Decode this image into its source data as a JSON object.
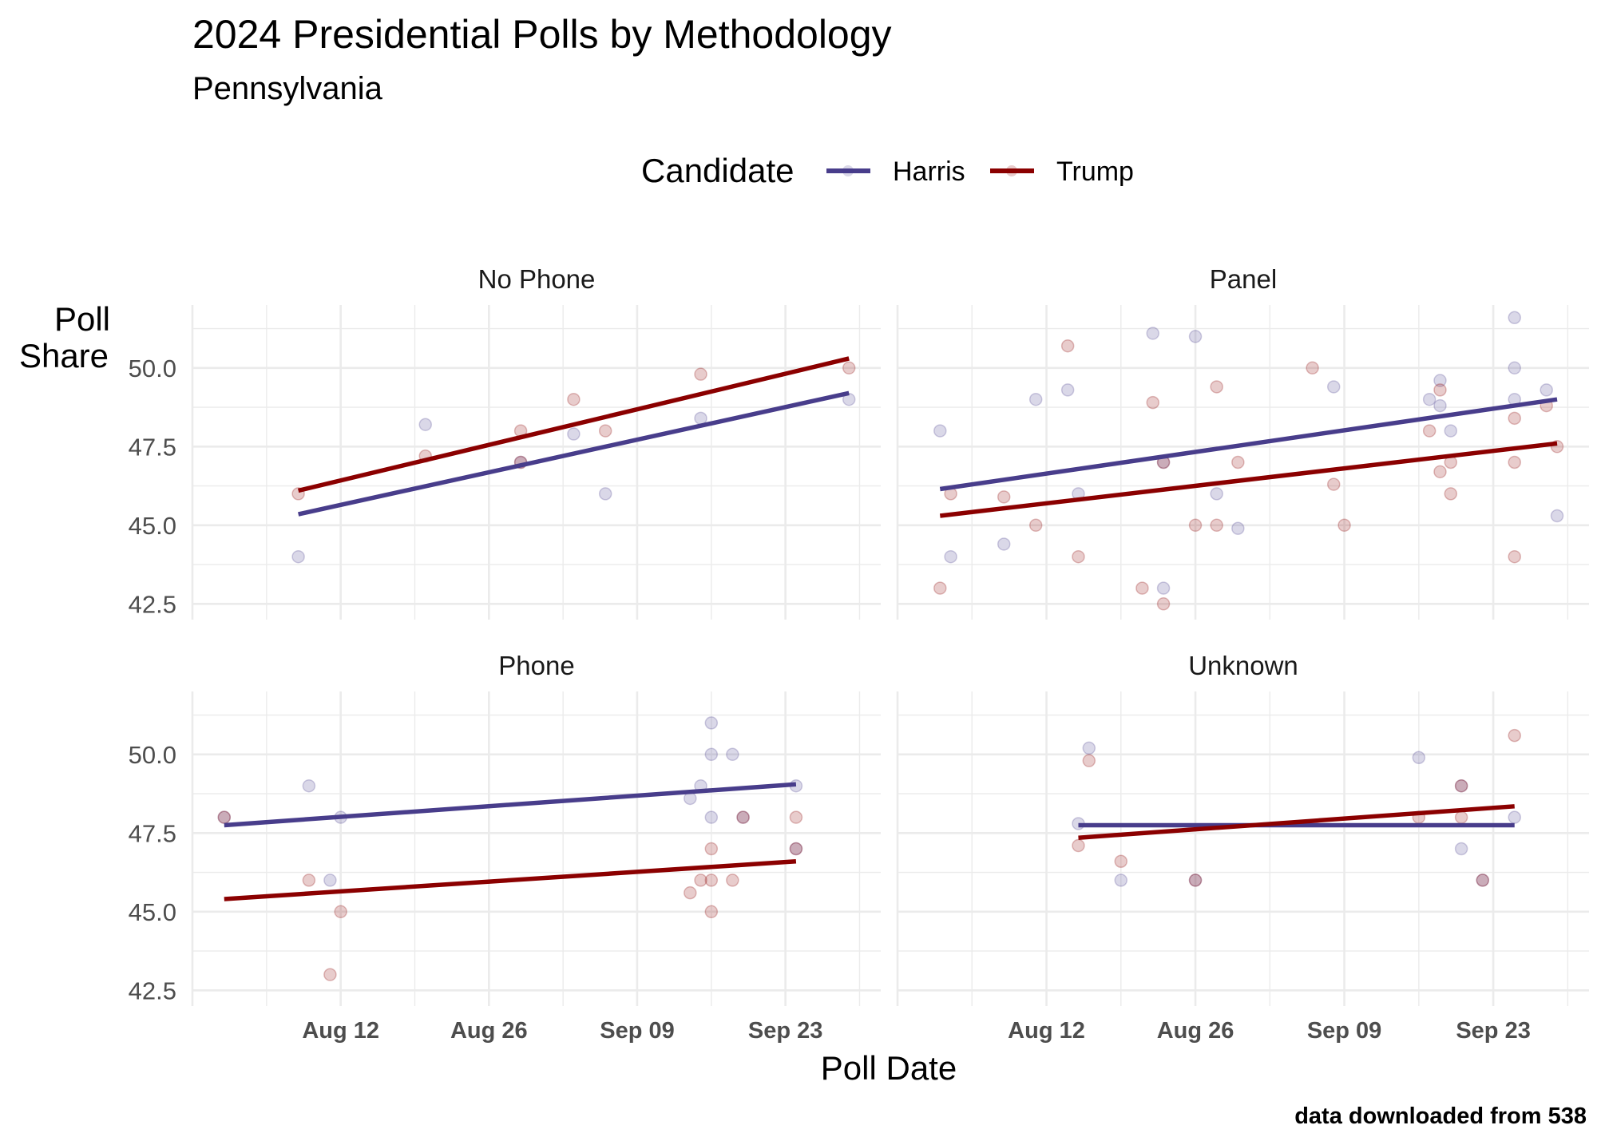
{
  "chart_data": {
    "type": "scatter",
    "title": "2024 Presidential Polls by Methodology",
    "subtitle": "Pennsylvania",
    "xlabel": "Poll Date",
    "ylabel": [
      "Poll",
      "Share"
    ],
    "caption": "data downloaded from 538",
    "legend": {
      "title": "Candidate",
      "placement": "top",
      "entries": [
        "Harris",
        "Trump"
      ]
    },
    "colors": {
      "Harris": "#483D8B",
      "Trump": "#8B0000"
    },
    "grid": true,
    "xlim": [
      "2024-07-29",
      "2024-10-02"
    ],
    "ylim": [
      42,
      52
    ],
    "x_ticks": [
      {
        "date": "2024-08-12",
        "label": "Aug 12"
      },
      {
        "date": "2024-08-26",
        "label": "Aug 26"
      },
      {
        "date": "2024-09-09",
        "label": "Sep 09"
      },
      {
        "date": "2024-09-23",
        "label": "Sep 23"
      }
    ],
    "y_ticks": [
      42.5,
      45.0,
      47.5,
      50.0
    ],
    "y_tick_labels": [
      "42.5",
      "45.0",
      "47.5",
      "50.0"
    ],
    "panels": [
      {
        "facet": "No Phone",
        "series": [
          {
            "name": "Harris",
            "points": [
              [
                "2024-08-08",
                44.0
              ],
              [
                "2024-08-20",
                48.2
              ],
              [
                "2024-08-29",
                47.0
              ],
              [
                "2024-09-03",
                47.9
              ],
              [
                "2024-09-06",
                46.0
              ],
              [
                "2024-09-15",
                48.4
              ],
              [
                "2024-09-29",
                49.0
              ]
            ],
            "trend": [
              [
                "2024-08-08",
                45.35
              ],
              [
                "2024-09-29",
                49.2
              ]
            ]
          },
          {
            "name": "Trump",
            "points": [
              [
                "2024-08-08",
                46.0
              ],
              [
                "2024-08-20",
                47.2
              ],
              [
                "2024-08-29",
                48.0
              ],
              [
                "2024-08-29",
                47.0
              ],
              [
                "2024-09-03",
                49.0
              ],
              [
                "2024-09-06",
                48.0
              ],
              [
                "2024-09-15",
                49.8
              ],
              [
                "2024-09-29",
                50.0
              ]
            ],
            "trend": [
              [
                "2024-08-08",
                46.1
              ],
              [
                "2024-09-29",
                50.3
              ]
            ]
          }
        ]
      },
      {
        "facet": "Panel",
        "series": [
          {
            "name": "Harris",
            "points": [
              [
                "2024-08-02",
                48.0
              ],
              [
                "2024-08-03",
                44.0
              ],
              [
                "2024-08-08",
                44.4
              ],
              [
                "2024-08-11",
                49.0
              ],
              [
                "2024-08-14",
                49.3
              ],
              [
                "2024-08-15",
                46.0
              ],
              [
                "2024-08-22",
                51.1
              ],
              [
                "2024-08-23",
                47.0
              ],
              [
                "2024-08-23",
                43.0
              ],
              [
                "2024-08-26",
                51.0
              ],
              [
                "2024-08-28",
                46.0
              ],
              [
                "2024-08-30",
                44.9
              ],
              [
                "2024-09-08",
                49.4
              ],
              [
                "2024-09-17",
                49.0
              ],
              [
                "2024-09-18",
                49.6
              ],
              [
                "2024-09-18",
                48.8
              ],
              [
                "2024-09-19",
                48.0
              ],
              [
                "2024-09-25",
                51.6
              ],
              [
                "2024-09-25",
                50.0
              ],
              [
                "2024-09-25",
                49.0
              ],
              [
                "2024-09-28",
                49.3
              ],
              [
                "2024-09-29",
                45.3
              ]
            ],
            "trend": [
              [
                "2024-08-02",
                46.15
              ],
              [
                "2024-09-29",
                49.0
              ]
            ]
          },
          {
            "name": "Trump",
            "points": [
              [
                "2024-08-02",
                43.0
              ],
              [
                "2024-08-03",
                46.0
              ],
              [
                "2024-08-08",
                45.9
              ],
              [
                "2024-08-11",
                45.0
              ],
              [
                "2024-08-14",
                50.7
              ],
              [
                "2024-08-15",
                44.0
              ],
              [
                "2024-08-21",
                43.0
              ],
              [
                "2024-08-22",
                48.9
              ],
              [
                "2024-08-23",
                47.0
              ],
              [
                "2024-08-23",
                42.5
              ],
              [
                "2024-08-26",
                45.0
              ],
              [
                "2024-08-28",
                49.4
              ],
              [
                "2024-08-28",
                45.0
              ],
              [
                "2024-08-30",
                47.0
              ],
              [
                "2024-09-06",
                50.0
              ],
              [
                "2024-09-08",
                46.3
              ],
              [
                "2024-09-09",
                45.0
              ],
              [
                "2024-09-17",
                48.0
              ],
              [
                "2024-09-18",
                49.3
              ],
              [
                "2024-09-18",
                46.7
              ],
              [
                "2024-09-19",
                47.0
              ],
              [
                "2024-09-19",
                46.0
              ],
              [
                "2024-09-25",
                48.4
              ],
              [
                "2024-09-25",
                47.0
              ],
              [
                "2024-09-25",
                44.0
              ],
              [
                "2024-09-28",
                48.8
              ],
              [
                "2024-09-29",
                47.5
              ]
            ],
            "trend": [
              [
                "2024-08-02",
                45.3
              ],
              [
                "2024-09-29",
                47.6
              ]
            ]
          }
        ]
      },
      {
        "facet": "Phone",
        "series": [
          {
            "name": "Harris",
            "points": [
              [
                "2024-08-01",
                48.0
              ],
              [
                "2024-08-09",
                49.0
              ],
              [
                "2024-08-11",
                46.0
              ],
              [
                "2024-08-12",
                48.0
              ],
              [
                "2024-09-14",
                48.6
              ],
              [
                "2024-09-15",
                49.0
              ],
              [
                "2024-09-16",
                51.0
              ],
              [
                "2024-09-16",
                50.0
              ],
              [
                "2024-09-16",
                48.0
              ],
              [
                "2024-09-18",
                50.0
              ],
              [
                "2024-09-19",
                48.0
              ],
              [
                "2024-09-24",
                49.0
              ],
              [
                "2024-09-24",
                47.0
              ]
            ],
            "trend": [
              [
                "2024-08-01",
                47.75
              ],
              [
                "2024-09-24",
                49.05
              ]
            ]
          },
          {
            "name": "Trump",
            "points": [
              [
                "2024-08-01",
                48.0
              ],
              [
                "2024-08-09",
                46.0
              ],
              [
                "2024-08-11",
                43.0
              ],
              [
                "2024-08-12",
                45.0
              ],
              [
                "2024-09-14",
                45.6
              ],
              [
                "2024-09-15",
                46.0
              ],
              [
                "2024-09-16",
                47.0
              ],
              [
                "2024-09-16",
                46.0
              ],
              [
                "2024-09-16",
                45.0
              ],
              [
                "2024-09-18",
                46.0
              ],
              [
                "2024-09-19",
                48.0
              ],
              [
                "2024-09-24",
                48.0
              ],
              [
                "2024-09-24",
                47.0
              ]
            ],
            "trend": [
              [
                "2024-08-01",
                45.4
              ],
              [
                "2024-09-24",
                46.6
              ]
            ]
          }
        ]
      },
      {
        "facet": "Unknown",
        "series": [
          {
            "name": "Harris",
            "points": [
              [
                "2024-08-15",
                47.8
              ],
              [
                "2024-08-16",
                50.2
              ],
              [
                "2024-08-19",
                46.0
              ],
              [
                "2024-08-26",
                46.0
              ],
              [
                "2024-09-16",
                49.9
              ],
              [
                "2024-09-20",
                49.0
              ],
              [
                "2024-09-20",
                47.0
              ],
              [
                "2024-09-22",
                46.0
              ],
              [
                "2024-09-25",
                48.0
              ]
            ],
            "trend": [
              [
                "2024-08-15",
                47.75
              ],
              [
                "2024-09-25",
                47.75
              ]
            ]
          },
          {
            "name": "Trump",
            "points": [
              [
                "2024-08-15",
                47.1
              ],
              [
                "2024-08-16",
                49.8
              ],
              [
                "2024-08-19",
                46.6
              ],
              [
                "2024-08-26",
                46.0
              ],
              [
                "2024-09-16",
                48.0
              ],
              [
                "2024-09-20",
                49.0
              ],
              [
                "2024-09-20",
                48.0
              ],
              [
                "2024-09-22",
                46.0
              ],
              [
                "2024-09-25",
                50.6
              ]
            ],
            "trend": [
              [
                "2024-08-15",
                47.35
              ],
              [
                "2024-09-25",
                48.35
              ]
            ]
          }
        ]
      }
    ]
  }
}
